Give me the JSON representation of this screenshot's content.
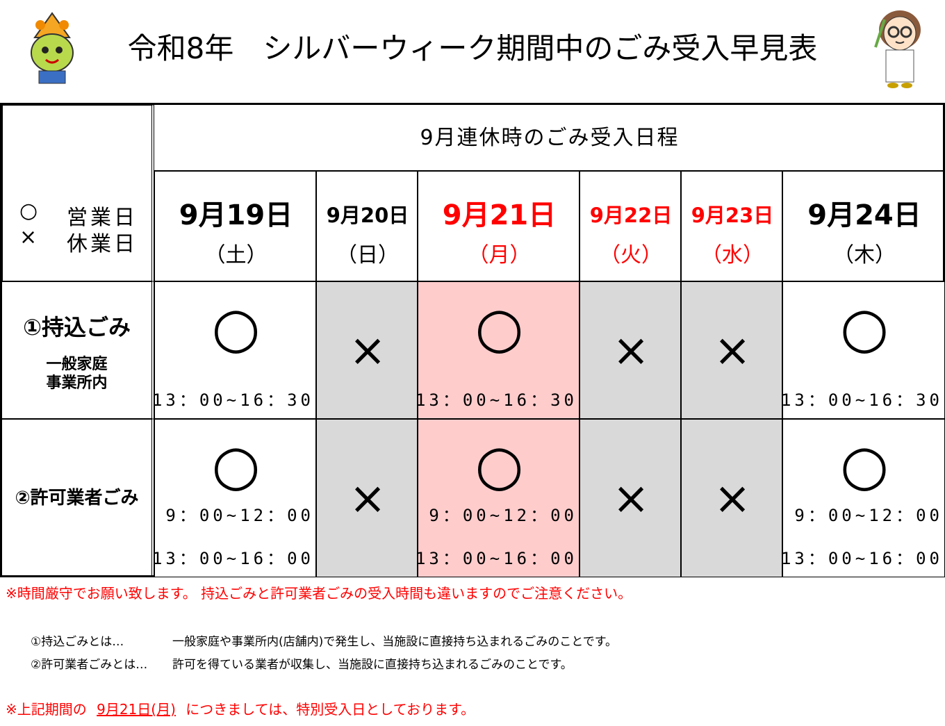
{
  "header": {
    "title": "令和8年　シルバーウィーク期間中のごみ受入早見表"
  },
  "table": {
    "legend": [
      {
        "symbol": "○",
        "text": "営業日"
      },
      {
        "symbol": "×",
        "text": "休業日"
      }
    ],
    "group_header": "9月連休時のごみ受入日程",
    "columns": [
      {
        "date": "9月19日",
        "weekday": "（土）",
        "color": "#000000",
        "background": "#ffffff"
      },
      {
        "date": "9月20日",
        "weekday": "（日）",
        "color": "#000000",
        "background": "#d9d9d9"
      },
      {
        "date": "9月21日",
        "weekday": "（月）",
        "color": "#ff0000",
        "background": "#ffcccc"
      },
      {
        "date": "9月22日",
        "weekday": "（火）",
        "color": "#ff0000",
        "background": "#d9d9d9"
      },
      {
        "date": "9月23日",
        "weekday": "（水）",
        "color": "#ff0000",
        "background": "#d9d9d9"
      },
      {
        "date": "9月24日",
        "weekday": "（木）",
        "color": "#000000",
        "background": "#ffffff"
      }
    ],
    "rows": [
      {
        "label": "①持込ごみ",
        "sublabel": [
          "一般家庭",
          "事業所内"
        ],
        "cells": [
          {
            "mark": "○",
            "times": [
              "13：00~16：30"
            ]
          },
          {
            "mark": "×"
          },
          {
            "mark": "○",
            "times": [
              "13：00~16：30"
            ]
          },
          {
            "mark": "×"
          },
          {
            "mark": "×"
          },
          {
            "mark": "○",
            "times": [
              "13：00~16：30"
            ]
          }
        ]
      },
      {
        "label": "②許可業者ごみ",
        "cells": [
          {
            "mark": "○",
            "times": [
              "9：00~12：00",
              "13：00~16：00"
            ]
          },
          {
            "mark": "×"
          },
          {
            "mark": "○",
            "times": [
              "9：00~12：00",
              "13：00~16：00"
            ]
          },
          {
            "mark": "×"
          },
          {
            "mark": "×"
          },
          {
            "mark": "○",
            "times": [
              "9：00~12：00",
              "13：00~16：00"
            ]
          }
        ]
      }
    ]
  },
  "notes": {
    "warning": "※時間厳守でお願い致します。 持込ごみと許可業者ごみの受入時間も違いますのでご注意ください。",
    "definitions": [
      {
        "term": "①持込ごみとは…",
        "text": "一般家庭や事業所内(店舗内)で発生し、当施設に直接持ち込まれるごみのことです。"
      },
      {
        "term": "②許可業者ごみとは…",
        "text": "許可を得ている業者が収集し、当施設に直接持ち込まれるごみのことです。"
      }
    ],
    "special": {
      "before": "※上記期間の",
      "date": "9月21日(月)",
      "after": "につきましては、特別受入日としております。"
    }
  }
}
